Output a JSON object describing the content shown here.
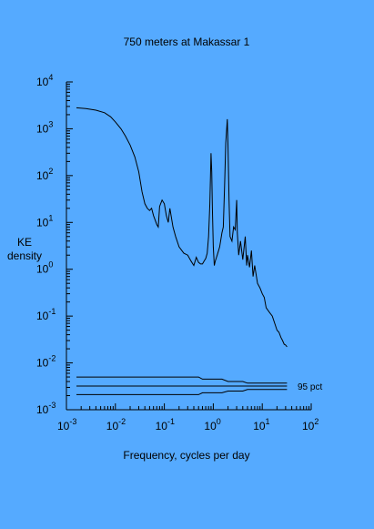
{
  "chart_data": {
    "type": "line",
    "title": "750 meters at Makassar 1",
    "xlabel": "Frequency, cycles per day",
    "ylabel": [
      "KE",
      "density"
    ],
    "x_scale": "log",
    "y_scale": "log",
    "xlim": [
      0.001,
      100
    ],
    "ylim": [
      0.001,
      10000
    ],
    "x_ticks": [
      {
        "base": "10",
        "exp": "-3",
        "value": 0.001
      },
      {
        "base": "10",
        "exp": "-2",
        "value": 0.01
      },
      {
        "base": "10",
        "exp": "-1",
        "value": 0.1
      },
      {
        "base": "10",
        "exp": "0",
        "value": 1
      },
      {
        "base": "10",
        "exp": "1",
        "value": 10
      },
      {
        "base": "10",
        "exp": "2",
        "value": 100
      }
    ],
    "y_ticks": [
      {
        "base": "10",
        "exp": "4",
        "value": 10000
      },
      {
        "base": "10",
        "exp": "3",
        "value": 1000
      },
      {
        "base": "10",
        "exp": "2",
        "value": 100
      },
      {
        "base": "10",
        "exp": "1",
        "value": 10
      },
      {
        "base": "10",
        "exp": "0",
        "value": 1
      },
      {
        "base": "10",
        "exp": "-1",
        "value": 0.1
      },
      {
        "base": "10",
        "exp": "-2",
        "value": 0.01
      },
      {
        "base": "10",
        "exp": "-3",
        "value": 0.001
      }
    ],
    "grid": false,
    "series": [
      {
        "points": [
          [
            0.0016,
            2800
          ],
          [
            0.0025,
            2700
          ],
          [
            0.004,
            2500
          ],
          [
            0.006,
            2200
          ],
          [
            0.008,
            1800
          ],
          [
            0.01,
            1400
          ],
          [
            0.013,
            1000
          ],
          [
            0.016,
            700
          ],
          [
            0.02,
            450
          ],
          [
            0.025,
            250
          ],
          [
            0.03,
            120
          ],
          [
            0.035,
            45
          ],
          [
            0.04,
            25
          ],
          [
            0.045,
            20
          ],
          [
            0.05,
            18
          ],
          [
            0.055,
            20
          ],
          [
            0.06,
            14
          ],
          [
            0.07,
            9
          ],
          [
            0.075,
            8
          ],
          [
            0.08,
            22
          ],
          [
            0.09,
            30
          ],
          [
            0.1,
            25
          ],
          [
            0.11,
            14
          ],
          [
            0.12,
            10
          ],
          [
            0.13,
            20
          ],
          [
            0.15,
            8
          ],
          [
            0.17,
            5
          ],
          [
            0.2,
            3
          ],
          [
            0.25,
            2.2
          ],
          [
            0.3,
            2
          ],
          [
            0.35,
            1.5
          ],
          [
            0.4,
            1.2
          ],
          [
            0.45,
            1.8
          ],
          [
            0.5,
            1.4
          ],
          [
            0.55,
            1.3
          ],
          [
            0.6,
            1.3
          ],
          [
            0.65,
            1.5
          ],
          [
            0.7,
            1.7
          ],
          [
            0.75,
            2.2
          ],
          [
            0.8,
            5
          ],
          [
            0.85,
            25
          ],
          [
            0.9,
            300
          ],
          [
            0.93,
            120
          ],
          [
            0.96,
            20
          ],
          [
            1.0,
            3
          ],
          [
            1.05,
            1.2
          ],
          [
            1.1,
            1.5
          ],
          [
            1.2,
            2
          ],
          [
            1.35,
            3
          ],
          [
            1.5,
            6
          ],
          [
            1.6,
            8
          ],
          [
            1.7,
            60
          ],
          [
            1.8,
            500
          ],
          [
            1.93,
            1600
          ],
          [
            2.0,
            400
          ],
          [
            2.1,
            30
          ],
          [
            2.2,
            5
          ],
          [
            2.4,
            4
          ],
          [
            2.6,
            8
          ],
          [
            2.8,
            7
          ],
          [
            3.0,
            30
          ],
          [
            3.1,
            6
          ],
          [
            3.3,
            2
          ],
          [
            3.6,
            4
          ],
          [
            4.0,
            1.6
          ],
          [
            4.5,
            5
          ],
          [
            4.8,
            1.2
          ],
          [
            5.0,
            2
          ],
          [
            5.5,
            1.1
          ],
          [
            6.0,
            2.5
          ],
          [
            6.5,
            0.7
          ],
          [
            7.0,
            1.2
          ],
          [
            8.0,
            0.5
          ],
          [
            9.0,
            0.4
          ],
          [
            10.0,
            0.3
          ],
          [
            11.0,
            0.25
          ],
          [
            12.0,
            0.15
          ],
          [
            14.0,
            0.12
          ],
          [
            16.0,
            0.1
          ],
          [
            18.0,
            0.07
          ],
          [
            20.0,
            0.05
          ],
          [
            22.0,
            0.045
          ],
          [
            24.0,
            0.035
          ],
          [
            26.0,
            0.03
          ],
          [
            28.0,
            0.025
          ],
          [
            30.0,
            0.024
          ],
          [
            32.0,
            0.022
          ]
        ]
      }
    ],
    "confidence_label": "95 pct",
    "confidence_lines": [
      {
        "points": [
          [
            0.0016,
            0.005
          ],
          [
            0.5,
            0.005
          ],
          [
            0.6,
            0.0045
          ],
          [
            1.5,
            0.0045
          ],
          [
            2.0,
            0.004
          ],
          [
            4.0,
            0.004
          ],
          [
            5.0,
            0.0037
          ],
          [
            32.0,
            0.0037
          ]
        ]
      },
      {
        "points": [
          [
            0.0016,
            0.0032
          ],
          [
            32.0,
            0.0032
          ]
        ]
      },
      {
        "points": [
          [
            0.0016,
            0.0021
          ],
          [
            0.5,
            0.0021
          ],
          [
            0.6,
            0.0023
          ],
          [
            1.5,
            0.0023
          ],
          [
            2.0,
            0.0025
          ],
          [
            4.0,
            0.0025
          ],
          [
            5.0,
            0.0027
          ],
          [
            32.0,
            0.0027
          ]
        ]
      }
    ]
  }
}
